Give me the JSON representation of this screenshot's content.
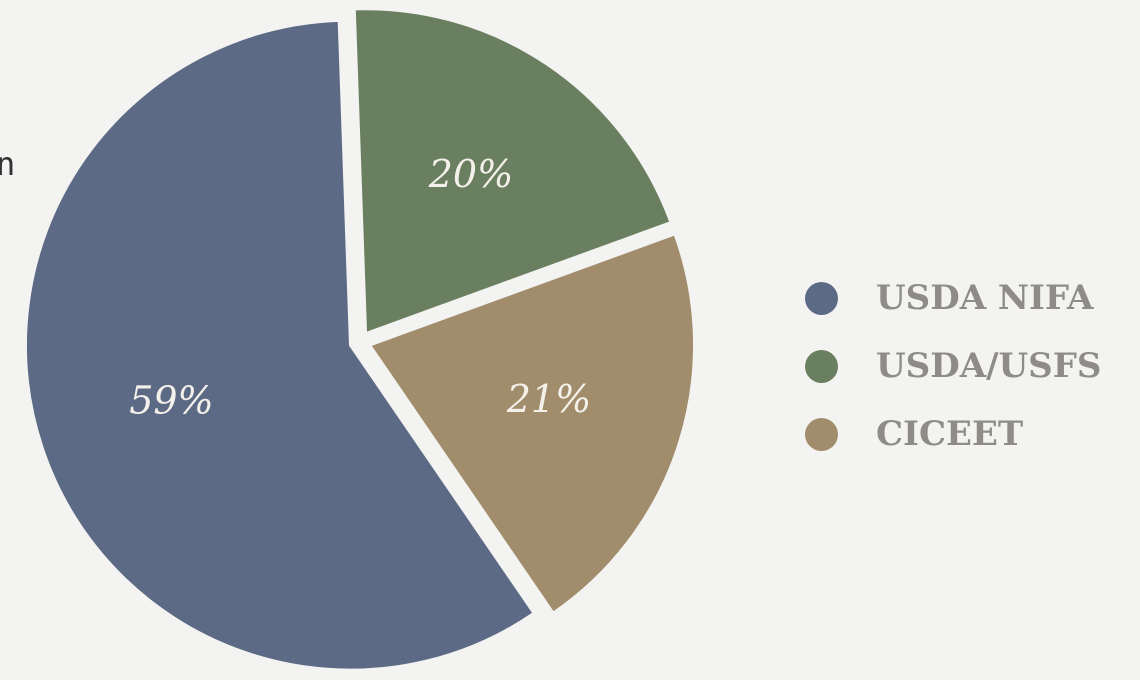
{
  "edge_fragment": "n",
  "chart_data": {
    "type": "pie",
    "start_angle_deg": -2,
    "slices": [
      {
        "name": "USDA/USFS",
        "value": 20,
        "label": "20%",
        "color": "#6a7f60"
      },
      {
        "name": "CICEET",
        "value": 21,
        "label": "21%",
        "color": "#a18d6c"
      },
      {
        "name": "USDA NIFA",
        "value": 59,
        "label": "59%",
        "color": "#5d6a85"
      }
    ],
    "legend": {
      "placement": "right",
      "entries": [
        {
          "name": "USDA NIFA",
          "color": "#5d6a85"
        },
        {
          "name": "USDA/USFS",
          "color": "#6a7f60"
        },
        {
          "name": "CICEET",
          "color": "#a18d6c"
        }
      ]
    }
  }
}
